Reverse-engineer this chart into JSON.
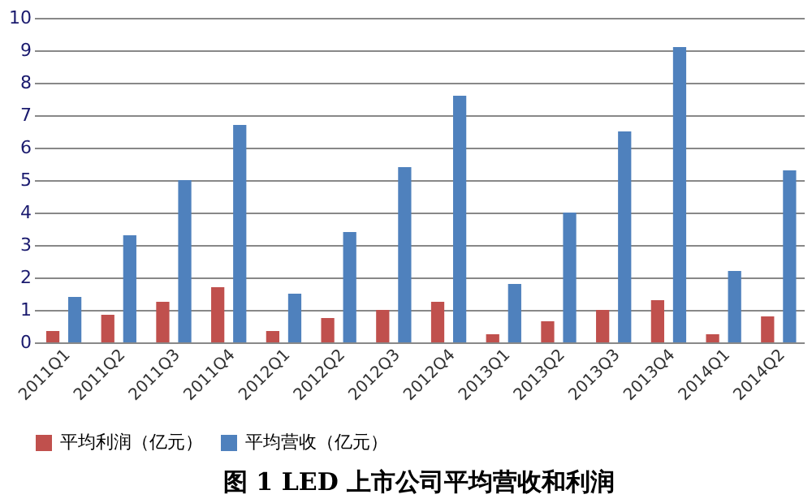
{
  "chart_data": {
    "type": "bar",
    "title": "图 1 LED 上市公司平均营收和利润",
    "categories": [
      "2011Q1",
      "2011Q2",
      "2011Q3",
      "2011Q4",
      "2012Q1",
      "2012Q2",
      "2012Q3",
      "2012Q4",
      "2013Q1",
      "2013Q2",
      "2013Q3",
      "2013Q4",
      "2014Q1",
      "2014Q2"
    ],
    "series": [
      {
        "name": "平均利润（亿元）",
        "color": "#c0504d",
        "values": [
          0.35,
          0.85,
          1.25,
          1.7,
          0.35,
          0.75,
          1.0,
          1.25,
          0.25,
          0.65,
          1.0,
          1.3,
          0.25,
          0.8
        ]
      },
      {
        "name": "平均营收（亿元）",
        "color": "#4f81bd",
        "values": [
          1.4,
          3.3,
          5.0,
          6.7,
          1.5,
          3.4,
          5.4,
          7.6,
          1.8,
          4.0,
          6.5,
          9.1,
          2.2,
          5.3
        ]
      }
    ],
    "ylim": [
      0,
      10
    ],
    "yticks": [
      0,
      1,
      2,
      3,
      4,
      5,
      6,
      7,
      8,
      9,
      10
    ],
    "grid": "y",
    "legend": "bottom"
  }
}
